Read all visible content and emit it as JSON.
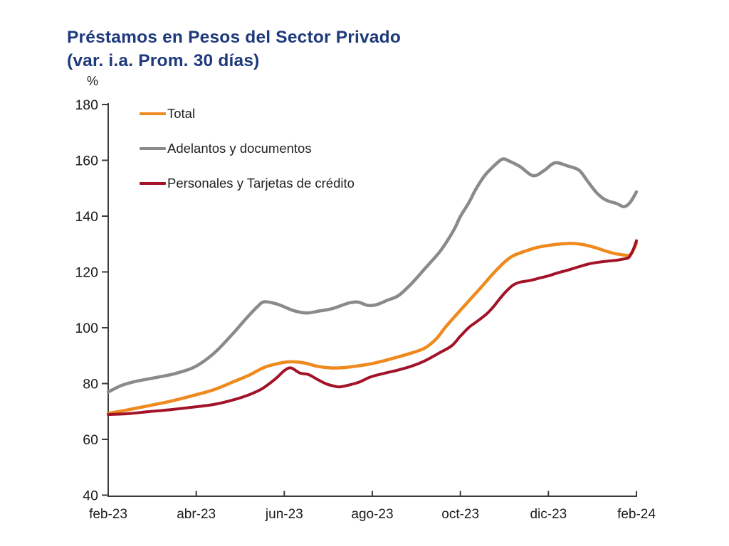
{
  "header": {
    "title_line1": "Préstamos en Pesos del Sector Privado",
    "title_line2": "(var. i.a. Prom. 30 días)"
  },
  "colors": {
    "title": "#1E3A7B",
    "axis": "#3c3c3c",
    "tick_text": "#1a1a1a"
  },
  "chart_data": {
    "type": "line",
    "title": "Préstamos en Pesos del Sector Privado (var. i.a. Prom. 30 días)",
    "unit_label": "%",
    "xlabel": "",
    "ylabel": "%",
    "ylim": [
      40,
      180
    ],
    "xlim_months": [
      0,
      12
    ],
    "grid": false,
    "legend_position": "inside top-left",
    "y_ticks": [
      40,
      60,
      80,
      100,
      120,
      140,
      160,
      180
    ],
    "x_tick_labels": [
      "feb-23",
      "abr-23",
      "jun-23",
      "ago-23",
      "oct-23",
      "dic-23",
      "feb-24"
    ],
    "x_tick_positions_months": [
      0,
      2,
      4,
      6,
      8,
      10,
      12
    ],
    "x_unit": "months since feb-2023",
    "series": [
      {
        "name": "Total",
        "color": "#EE8A1E",
        "stroke_width": 4.5,
        "points": [
          [
            0,
            69.3
          ],
          [
            0.45,
            70.6
          ],
          [
            0.9,
            72.0
          ],
          [
            1.4,
            73.6
          ],
          [
            1.9,
            75.6
          ],
          [
            2.4,
            77.8
          ],
          [
            2.85,
            80.7
          ],
          [
            3.2,
            83.0
          ],
          [
            3.55,
            85.8
          ],
          [
            3.9,
            87.3
          ],
          [
            4.15,
            87.8
          ],
          [
            4.45,
            87.4
          ],
          [
            4.75,
            86.2
          ],
          [
            5.05,
            85.6
          ],
          [
            5.35,
            85.7
          ],
          [
            5.65,
            86.3
          ],
          [
            5.95,
            87.0
          ],
          [
            6.25,
            88.1
          ],
          [
            6.55,
            89.4
          ],
          [
            6.9,
            91.0
          ],
          [
            7.2,
            92.8
          ],
          [
            7.45,
            96.0
          ],
          [
            7.65,
            100.0
          ],
          [
            7.9,
            104.5
          ],
          [
            8.1,
            108.0
          ],
          [
            8.3,
            111.5
          ],
          [
            8.5,
            115.0
          ],
          [
            8.75,
            119.5
          ],
          [
            9.0,
            123.5
          ],
          [
            9.2,
            125.8
          ],
          [
            9.5,
            127.6
          ],
          [
            9.75,
            128.8
          ],
          [
            10.0,
            129.5
          ],
          [
            10.2,
            129.9
          ],
          [
            10.45,
            130.2
          ],
          [
            10.65,
            130.1
          ],
          [
            10.85,
            129.6
          ],
          [
            11.05,
            128.8
          ],
          [
            11.3,
            127.5
          ],
          [
            11.5,
            126.6
          ],
          [
            11.7,
            126.1
          ],
          [
            11.82,
            125.9
          ],
          [
            11.88,
            126.5
          ],
          [
            11.94,
            128.2
          ],
          [
            12,
            130.4
          ]
        ]
      },
      {
        "name": "Adelantos y documentos",
        "color": "#8A8A8A",
        "stroke_width": 4.5,
        "points": [
          [
            0,
            77.0
          ],
          [
            0.3,
            79.3
          ],
          [
            0.6,
            80.7
          ],
          [
            0.9,
            81.6
          ],
          [
            1.2,
            82.5
          ],
          [
            1.5,
            83.5
          ],
          [
            1.9,
            85.5
          ],
          [
            2.2,
            88.3
          ],
          [
            2.5,
            92.3
          ],
          [
            2.85,
            98.2
          ],
          [
            3.15,
            103.6
          ],
          [
            3.4,
            107.7
          ],
          [
            3.55,
            109.3
          ],
          [
            3.85,
            108.4
          ],
          [
            4.2,
            106.2
          ],
          [
            4.5,
            105.3
          ],
          [
            4.8,
            106.0
          ],
          [
            5.1,
            106.9
          ],
          [
            5.45,
            108.8
          ],
          [
            5.67,
            109.2
          ],
          [
            5.9,
            108.0
          ],
          [
            6.1,
            108.3
          ],
          [
            6.35,
            109.9
          ],
          [
            6.6,
            111.6
          ],
          [
            6.9,
            116.0
          ],
          [
            7.2,
            121.3
          ],
          [
            7.55,
            127.6
          ],
          [
            7.85,
            135.0
          ],
          [
            8.0,
            139.9
          ],
          [
            8.2,
            145.0
          ],
          [
            8.35,
            149.6
          ],
          [
            8.55,
            154.5
          ],
          [
            8.75,
            157.8
          ],
          [
            8.95,
            160.4
          ],
          [
            9.1,
            159.8
          ],
          [
            9.35,
            157.8
          ],
          [
            9.65,
            154.5
          ],
          [
            9.9,
            156.3
          ],
          [
            10.15,
            159.1
          ],
          [
            10.45,
            157.9
          ],
          [
            10.7,
            156.4
          ],
          [
            10.9,
            152.3
          ],
          [
            11.1,
            148.3
          ],
          [
            11.3,
            145.8
          ],
          [
            11.55,
            144.5
          ],
          [
            11.72,
            143.4
          ],
          [
            11.86,
            145.0
          ],
          [
            12,
            148.7
          ]
        ]
      },
      {
        "name": "Personales y Tarjetas de crédito",
        "color": "#A21328",
        "stroke_width": 4,
        "points": [
          [
            0,
            68.9
          ],
          [
            0.45,
            69.2
          ],
          [
            0.9,
            69.9
          ],
          [
            1.4,
            70.6
          ],
          [
            1.9,
            71.5
          ],
          [
            2.4,
            72.5
          ],
          [
            2.85,
            74.2
          ],
          [
            3.2,
            76.0
          ],
          [
            3.5,
            78.2
          ],
          [
            3.8,
            81.7
          ],
          [
            4.0,
            84.6
          ],
          [
            4.15,
            85.6
          ],
          [
            4.35,
            83.8
          ],
          [
            4.55,
            83.2
          ],
          [
            4.75,
            81.5
          ],
          [
            4.95,
            79.9
          ],
          [
            5.1,
            79.2
          ],
          [
            5.25,
            78.8
          ],
          [
            5.45,
            79.4
          ],
          [
            5.7,
            80.5
          ],
          [
            5.95,
            82.3
          ],
          [
            6.25,
            83.6
          ],
          [
            6.55,
            84.7
          ],
          [
            6.9,
            86.3
          ],
          [
            7.2,
            88.2
          ],
          [
            7.5,
            90.8
          ],
          [
            7.8,
            93.5
          ],
          [
            8.0,
            97.0
          ],
          [
            8.2,
            100.2
          ],
          [
            8.4,
            102.5
          ],
          [
            8.6,
            105.0
          ],
          [
            8.75,
            107.5
          ],
          [
            8.9,
            110.5
          ],
          [
            9.05,
            113.2
          ],
          [
            9.2,
            115.3
          ],
          [
            9.35,
            116.3
          ],
          [
            9.6,
            117.0
          ],
          [
            9.8,
            117.8
          ],
          [
            10.0,
            118.6
          ],
          [
            10.2,
            119.6
          ],
          [
            10.45,
            120.7
          ],
          [
            10.7,
            121.9
          ],
          [
            10.9,
            122.8
          ],
          [
            11.1,
            123.4
          ],
          [
            11.3,
            123.8
          ],
          [
            11.5,
            124.1
          ],
          [
            11.7,
            124.6
          ],
          [
            11.82,
            125.1
          ],
          [
            11.88,
            126.5
          ],
          [
            11.94,
            128.5
          ],
          [
            12,
            131.2
          ]
        ]
      }
    ]
  }
}
